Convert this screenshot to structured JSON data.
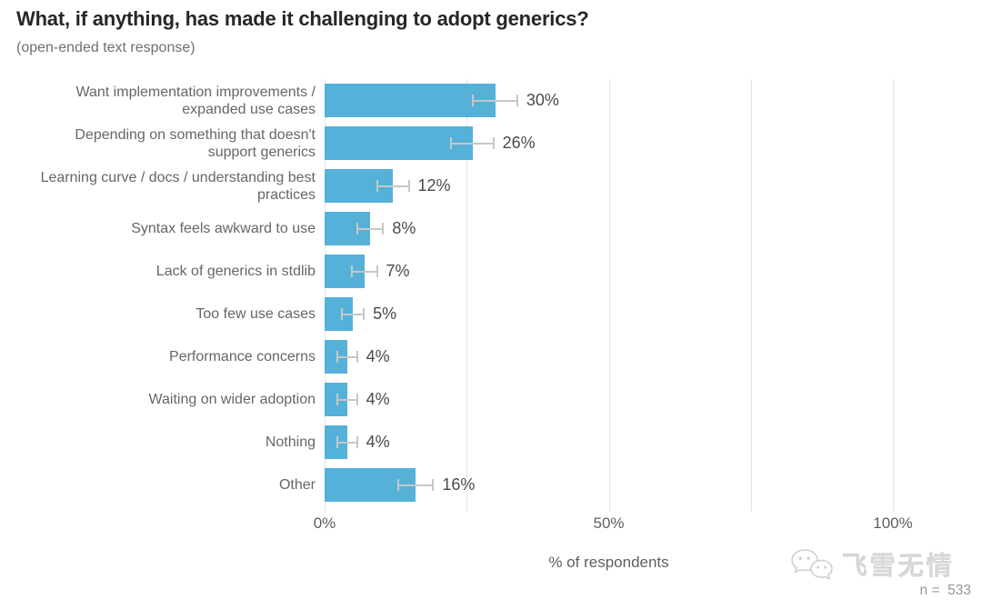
{
  "header": {
    "title": "What, if anything, has made it challenging to adopt generics?",
    "subtitle": "(open-ended text response)"
  },
  "chart_data": {
    "type": "bar",
    "orientation": "horizontal",
    "categories": [
      "Want implementation improvements / expanded use cases",
      "Depending on something that doesn't support generics",
      "Learning curve / docs / understanding best practices",
      "Syntax feels awkward to use",
      "Lack of generics in stdlib",
      "Too few use cases",
      "Performance concerns",
      "Waiting on wider adoption",
      "Nothing",
      "Other"
    ],
    "values": [
      30,
      26,
      12,
      8,
      7,
      5,
      4,
      4,
      4,
      16
    ],
    "value_labels": [
      "30%",
      "26%",
      "12%",
      "8%",
      "7%",
      "5%",
      "4%",
      "4%",
      "4%",
      "16%"
    ],
    "error_margins": [
      3.9,
      3.7,
      2.8,
      2.3,
      2.2,
      1.9,
      1.7,
      1.7,
      1.7,
      3.1
    ],
    "xlabel": "% of respondents",
    "x_ticks": [
      {
        "pos": 0,
        "label": "0%"
      },
      {
        "pos": 50,
        "label": "50%"
      },
      {
        "pos": 100,
        "label": "100%"
      }
    ],
    "gridline_positions": [
      0,
      25,
      50,
      75,
      100
    ],
    "xlim": [
      0,
      100
    ],
    "grid": "vertical",
    "legend": "none",
    "colors": {
      "bar": "#55b1d8",
      "error_bar": "#c7c7c7",
      "gridline": "#e6e6e6",
      "value_label": "#4a4a4a",
      "category_label": "#666666",
      "axis_label": "#5e5e5e"
    }
  },
  "footer": {
    "watermark_icon": "wechat-icon",
    "watermark_text": "飞雪无情",
    "sample_size": "n =  533"
  }
}
